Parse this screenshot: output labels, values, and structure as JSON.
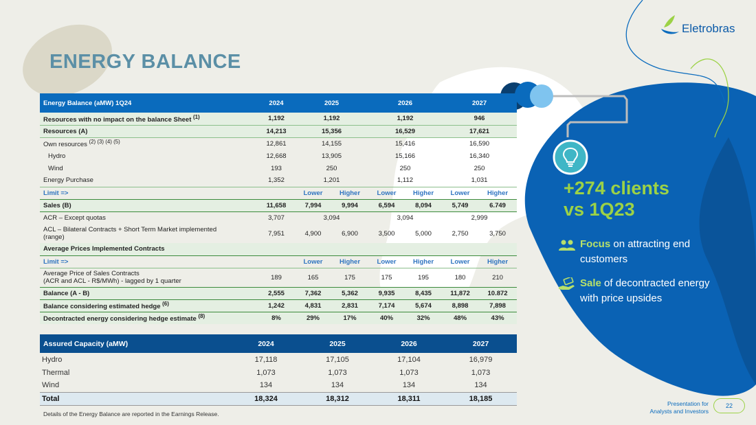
{
  "page": {
    "title": "ENERGY BALANCE",
    "page_number": "22",
    "presentation_label_1": "Presentation for",
    "presentation_label_2": "Analysts and Investors"
  },
  "logo": {
    "name": "Eletrobras"
  },
  "energy_balance": {
    "header": [
      "Energy Balance (aMW) 1Q24",
      "2024",
      "2025",
      "2026",
      "2027"
    ],
    "rows": {
      "no_impact": {
        "label": "Resources with no impact on the balance Sheet",
        "note": "(1)",
        "v": [
          "1,192",
          "1,192",
          "1,192",
          "946"
        ]
      },
      "resources": {
        "label": "Resources (A)",
        "v": [
          "14,213",
          "15,356",
          "16,529",
          "17,621"
        ]
      },
      "own": {
        "label": "Own resources",
        "note": "(2) (3) (4) (5)",
        "v": [
          "12,861",
          "14,155",
          "15,416",
          "16,590"
        ]
      },
      "hydro": {
        "label": "Hydro",
        "v": [
          "12,668",
          "13,905",
          "15,166",
          "16,340"
        ]
      },
      "wind": {
        "label": "Wind",
        "v": [
          "193",
          "250",
          "250",
          "250"
        ]
      },
      "purchase": {
        "label": "Energy Purchase",
        "v": [
          "1,352",
          "1,201",
          "1,112",
          "1,031"
        ]
      },
      "limit1": {
        "label": "Limit =>",
        "v": [
          "Lower",
          "Higher",
          "Lower",
          "Higher",
          "Lower",
          "Higher"
        ]
      },
      "sales": {
        "label": "Sales (B)",
        "v": [
          "11,658",
          "7,994",
          "9,994",
          "6,594",
          "8,094",
          "5,749",
          "6.749"
        ]
      },
      "acr": {
        "label": "ACR – Except quotas",
        "v": [
          "3,707",
          "3,094",
          "3,094",
          "2,999"
        ]
      },
      "acl": {
        "label": "ACL – Bilateral Contracts + Short Term Market implemented",
        "label2": "(range)",
        "v": [
          "7,951",
          "4,900",
          "6,900",
          "3,500",
          "5,000",
          "2,750",
          "3,750"
        ]
      },
      "avg_prices": {
        "label": "Average Prices Implemented Contracts"
      },
      "limit2": {
        "label": "Limit =>",
        "v": [
          "Lower",
          "Higher",
          "Lower",
          "Higher",
          "Lower",
          "Higher"
        ]
      },
      "avg_price": {
        "label": "Average Price of Sales Contracts",
        "label2": "(ACR and ACL - R$/MWh) - lagged by 1 quarter",
        "v": [
          "189",
          "165",
          "175",
          "175",
          "195",
          "180",
          "210"
        ]
      },
      "balance": {
        "label": "Balance (A - B)",
        "v": [
          "2,555",
          "7,362",
          "5,362",
          "9,935",
          "8,435",
          "11,872",
          "10.872"
        ]
      },
      "hedge": {
        "label": "Balance considering estimated hedge",
        "note": "(6)",
        "v": [
          "1,242",
          "4,831",
          "2,831",
          "7,174",
          "5,674",
          "8,898",
          "7,898"
        ]
      },
      "decontracted": {
        "label": "Decontracted energy considering hedge estimate",
        "note": "(8)",
        "v": [
          "8%",
          "29%",
          "17%",
          "40%",
          "32%",
          "48%",
          "43%"
        ]
      }
    }
  },
  "assured_capacity": {
    "header": [
      "Assured Capacity (aMW)",
      "2024",
      "2025",
      "2026",
      "2027"
    ],
    "rows": [
      {
        "label": "Hydro",
        "v": [
          "17,118",
          "17,105",
          "17,104",
          "16,979"
        ]
      },
      {
        "label": "Thermal",
        "v": [
          "1,073",
          "1,073",
          "1,073",
          "1,073"
        ]
      },
      {
        "label": "Wind",
        "v": [
          "134",
          "134",
          "134",
          "134"
        ]
      }
    ],
    "total": {
      "label": "Total",
      "v": [
        "18,324",
        "18,312",
        "18,311",
        "18,185"
      ]
    }
  },
  "footnote": "Details of the Energy Balance are reported in the Earnings Release.",
  "side": {
    "clients_line1": "+274 clients",
    "clients_line2": "vs 1Q23",
    "bullet1_highlight": "Focus",
    "bullet1_text": " on attracting end customers",
    "bullet2_highlight": "Sale",
    "bullet2_text": " of decontracted energy with price upsides"
  },
  "colors": {
    "primary_blue": "#0a6bbd",
    "dark_blue": "#0a4f8f",
    "accent_green": "#9cd246",
    "title_blue": "#5b8fa6"
  }
}
